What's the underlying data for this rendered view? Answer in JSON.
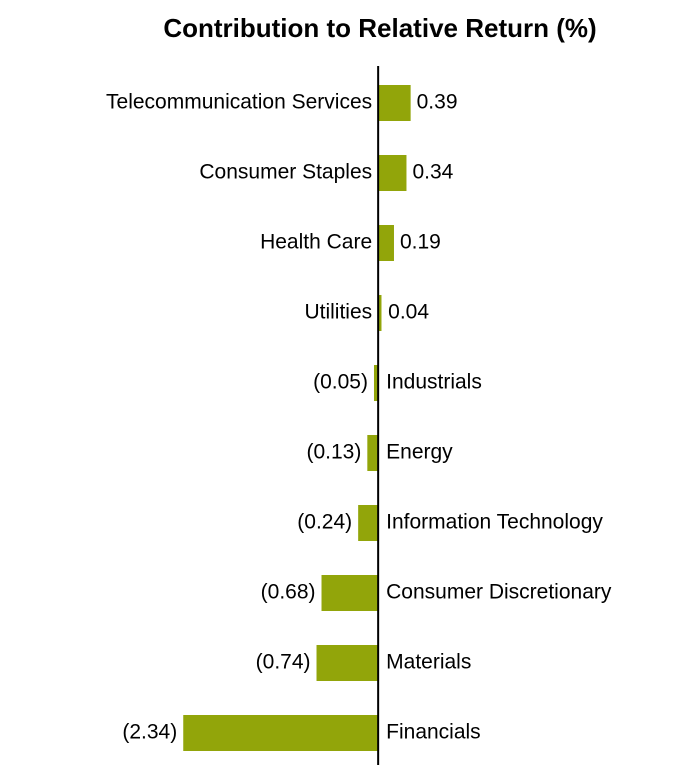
{
  "chart_data": {
    "type": "bar",
    "orientation": "horizontal",
    "title": "Contribution to Relative Return (%)",
    "categories": [
      "Telecommunication Services",
      "Consumer Staples",
      "Health Care",
      "Utilities",
      "Industrials",
      "Energy",
      "Information Technology",
      "Consumer Discretionary",
      "Materials",
      "Financials"
    ],
    "values": [
      0.39,
      0.34,
      0.19,
      0.04,
      -0.05,
      -0.13,
      -0.24,
      -0.68,
      -0.74,
      -2.34
    ],
    "value_labels": [
      "0.39",
      "0.34",
      "0.19",
      "0.04",
      "(0.05)",
      "(0.13)",
      "(0.24)",
      "(0.68)",
      "(0.74)",
      "(2.34)"
    ],
    "color": "#92a50a",
    "xlim": [
      -4.54,
      3.72
    ]
  }
}
